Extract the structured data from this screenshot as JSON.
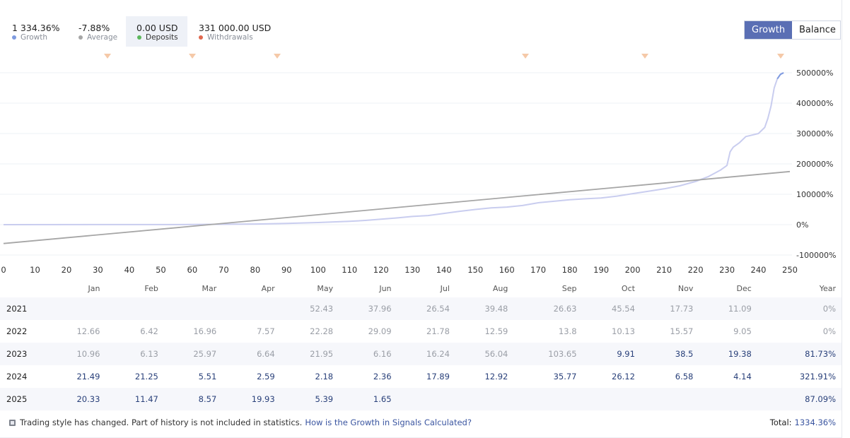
{
  "stats": [
    {
      "value": "1 334.36%",
      "label": "Growth",
      "color": "#7f9be0",
      "active": false
    },
    {
      "value": "-7.88%",
      "label": "Average",
      "color": "#a6a6a6",
      "active": false
    },
    {
      "value": "0.00 USD",
      "label": "Deposits",
      "color": "#5cb85c",
      "active": true
    },
    {
      "value": "331 000.00 USD",
      "label": "Withdrawals",
      "color": "#e0694f",
      "active": false
    }
  ],
  "toggle": {
    "growth_label": "Growth",
    "balance_label": "Balance",
    "selected": "Growth"
  },
  "chart_data": {
    "type": "line",
    "xlim": [
      0,
      250
    ],
    "x_ticks": [
      "0",
      "10",
      "20",
      "30",
      "40",
      "50",
      "60",
      "70",
      "80",
      "90",
      "100",
      "110",
      "120",
      "130",
      "140",
      "150",
      "160",
      "170",
      "180",
      "190",
      "200",
      "210",
      "220",
      "230",
      "240",
      "250"
    ],
    "ylim": [
      -100000,
      500000
    ],
    "y_ticks": [
      "500000%",
      "400000%",
      "300000%",
      "200000%",
      "100000%",
      "0%",
      "-100000%"
    ],
    "withdrawal_markers_x": [
      33,
      60,
      87,
      166,
      204,
      247
    ],
    "series": [
      {
        "color": "#c9cdef",
        "x": [
          0,
          60,
          80,
          90,
          100,
          110,
          115,
          120,
          125,
          130,
          135,
          140,
          145,
          150,
          155,
          160,
          165,
          170,
          175,
          180,
          185,
          190,
          195,
          200,
          205,
          210,
          215,
          220,
          224,
          228,
          230,
          231,
          232,
          234,
          236,
          238,
          240,
          242,
          243,
          244,
          245,
          246,
          247,
          248
        ],
        "y": [
          0,
          500,
          2000,
          4000,
          7000,
          11000,
          14000,
          18000,
          22000,
          27000,
          30000,
          37000,
          44000,
          50000,
          55000,
          58000,
          63000,
          72000,
          77000,
          82000,
          85000,
          88000,
          94000,
          102000,
          110000,
          118000,
          128000,
          142000,
          158000,
          180000,
          195000,
          240000,
          255000,
          270000,
          290000,
          295000,
          300000,
          320000,
          350000,
          390000,
          450000,
          480000,
          495000,
          500000
        ]
      },
      {
        "color": "#a6a6a6",
        "x": [
          0,
          250
        ],
        "y": [
          -62000,
          175000
        ]
      }
    ]
  },
  "table": {
    "headers": [
      "",
      "Jan",
      "Feb",
      "Mar",
      "Apr",
      "May",
      "Jun",
      "Jul",
      "Aug",
      "Sep",
      "Oct",
      "Nov",
      "Dec",
      "Year"
    ],
    "rows": [
      {
        "year": "2021",
        "cells": [
          "",
          "",
          "",
          "",
          "52.43",
          "37.96",
          "26.54",
          "39.48",
          "26.63",
          "45.54",
          "17.73",
          "11.09"
        ],
        "pos": [
          0,
          0,
          0,
          0,
          0,
          0,
          0,
          0,
          0,
          0,
          0,
          0
        ],
        "total": "0%",
        "total_pos": false
      },
      {
        "year": "2022",
        "cells": [
          "12.66",
          "6.42",
          "16.96",
          "7.57",
          "22.28",
          "29.09",
          "21.78",
          "12.59",
          "13.8",
          "10.13",
          "15.57",
          "9.05"
        ],
        "pos": [
          0,
          0,
          0,
          0,
          0,
          0,
          0,
          0,
          0,
          0,
          0,
          0
        ],
        "total": "0%",
        "total_pos": false
      },
      {
        "year": "2023",
        "cells": [
          "10.96",
          "6.13",
          "25.97",
          "6.64",
          "21.95",
          "6.16",
          "16.24",
          "56.04",
          "103.65",
          "9.91",
          "38.5",
          "19.38"
        ],
        "pos": [
          0,
          0,
          0,
          0,
          0,
          0,
          0,
          0,
          0,
          1,
          1,
          1
        ],
        "total": "81.73%",
        "total_pos": true
      },
      {
        "year": "2024",
        "cells": [
          "21.49",
          "21.25",
          "5.51",
          "2.59",
          "2.18",
          "2.36",
          "17.89",
          "12.92",
          "35.77",
          "26.12",
          "6.58",
          "4.14"
        ],
        "pos": [
          1,
          1,
          1,
          1,
          1,
          1,
          1,
          1,
          1,
          1,
          1,
          1
        ],
        "total": "321.91%",
        "total_pos": true
      },
      {
        "year": "2025",
        "cells": [
          "20.33",
          "11.47",
          "8.57",
          "19.93",
          "5.39",
          "1.65",
          "",
          "",
          "",
          "",
          "",
          ""
        ],
        "pos": [
          1,
          1,
          1,
          1,
          1,
          1,
          0,
          0,
          0,
          0,
          0,
          0
        ],
        "total": "87.09%",
        "total_pos": true
      }
    ]
  },
  "footer": {
    "note": "Trading style has changed. Part of history is not included in statistics.",
    "link": "How is the Growth in Signals Calculated?",
    "total_label": "Total:",
    "total_value": "1334.36%"
  }
}
